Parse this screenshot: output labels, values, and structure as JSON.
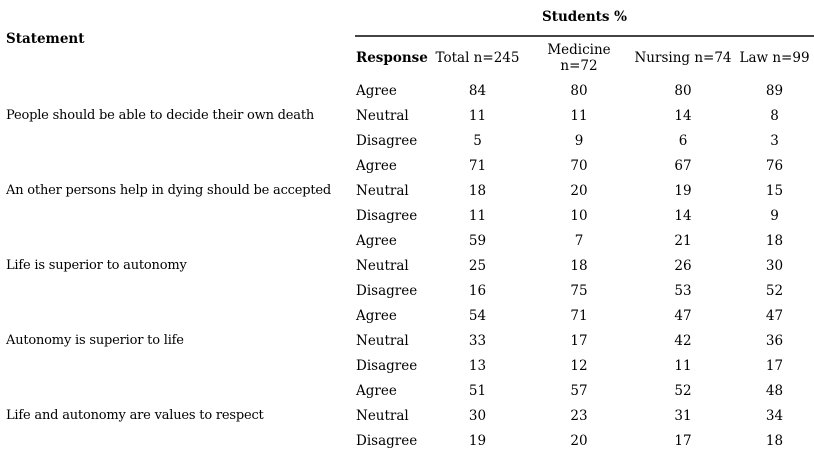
{
  "colors": {
    "rule": "#444444",
    "text": "#000000",
    "background": "#ffffff"
  },
  "table": {
    "statement_header": "Statement",
    "students_header": "Students %",
    "response_header": "Response",
    "columns": [
      "Total n=245",
      "Medicine n=72",
      "Nursing n=74",
      "Law n=99"
    ],
    "groups": [
      {
        "statement": "People should be able to decide their own death",
        "rows": [
          {
            "response": "Agree",
            "values": [
              84,
              80,
              80,
              89
            ]
          },
          {
            "response": "Neutral",
            "values": [
              11,
              11,
              14,
              8
            ]
          },
          {
            "response": "Disagree",
            "values": [
              5,
              9,
              6,
              3
            ]
          }
        ]
      },
      {
        "statement": "An other persons help in dying should be accepted",
        "rows": [
          {
            "response": "Agree",
            "values": [
              71,
              70,
              67,
              76
            ]
          },
          {
            "response": "Neutral",
            "values": [
              18,
              20,
              19,
              15
            ]
          },
          {
            "response": "Disagree",
            "values": [
              11,
              10,
              14,
              9
            ]
          }
        ]
      },
      {
        "statement": "Life is superior to autonomy",
        "rows": [
          {
            "response": "Agree",
            "values": [
              59,
              7,
              21,
              18
            ]
          },
          {
            "response": "Neutral",
            "values": [
              25,
              18,
              26,
              30
            ]
          },
          {
            "response": "Disagree",
            "values": [
              16,
              75,
              53,
              52
            ]
          }
        ]
      },
      {
        "statement": "Autonomy is superior to life",
        "rows": [
          {
            "response": "Agree",
            "values": [
              54,
              71,
              47,
              47
            ]
          },
          {
            "response": "Neutral",
            "values": [
              33,
              17,
              42,
              36
            ]
          },
          {
            "response": "Disagree",
            "values": [
              13,
              12,
              11,
              17
            ]
          }
        ]
      },
      {
        "statement": "Life and autonomy are values to respect",
        "rows": [
          {
            "response": "Agree",
            "values": [
              51,
              57,
              52,
              48
            ]
          },
          {
            "response": "Neutral",
            "values": [
              30,
              23,
              31,
              34
            ]
          },
          {
            "response": "Disagree",
            "values": [
              19,
              20,
              17,
              18
            ]
          }
        ]
      }
    ]
  },
  "chart_data": {
    "type": "table",
    "title": "Students %",
    "row_header": "Statement",
    "columns": [
      "Response",
      "Total n=245",
      "Medicine n=72",
      "Nursing n=74",
      "Law n=99"
    ],
    "rows": [
      [
        "People should be able to decide their own death",
        "Agree",
        84,
        80,
        80,
        89
      ],
      [
        "People should be able to decide their own death",
        "Neutral",
        11,
        11,
        14,
        8
      ],
      [
        "People should be able to decide their own death",
        "Disagree",
        5,
        9,
        6,
        3
      ],
      [
        "An other persons help in dying should be accepted",
        "Agree",
        71,
        70,
        67,
        76
      ],
      [
        "An other persons help in dying should be accepted",
        "Neutral",
        18,
        20,
        19,
        15
      ],
      [
        "An other persons help in dying should be accepted",
        "Disagree",
        11,
        10,
        14,
        9
      ],
      [
        "Life is superior to autonomy",
        "Agree",
        59,
        7,
        21,
        18
      ],
      [
        "Life is superior to autonomy",
        "Neutral",
        25,
        18,
        26,
        30
      ],
      [
        "Life is superior to autonomy",
        "Disagree",
        16,
        75,
        53,
        52
      ],
      [
        "Autonomy is superior to life",
        "Agree",
        54,
        71,
        47,
        47
      ],
      [
        "Autonomy is superior to life",
        "Neutral",
        33,
        17,
        42,
        36
      ],
      [
        "Autonomy is superior to life",
        "Disagree",
        13,
        12,
        11,
        17
      ],
      [
        "Life and autonomy are values to respect",
        "Agree",
        51,
        57,
        52,
        48
      ],
      [
        "Life and autonomy are values to respect",
        "Neutral",
        30,
        23,
        31,
        34
      ],
      [
        "Life and autonomy are values to respect",
        "Disagree",
        19,
        20,
        17,
        18
      ]
    ]
  }
}
